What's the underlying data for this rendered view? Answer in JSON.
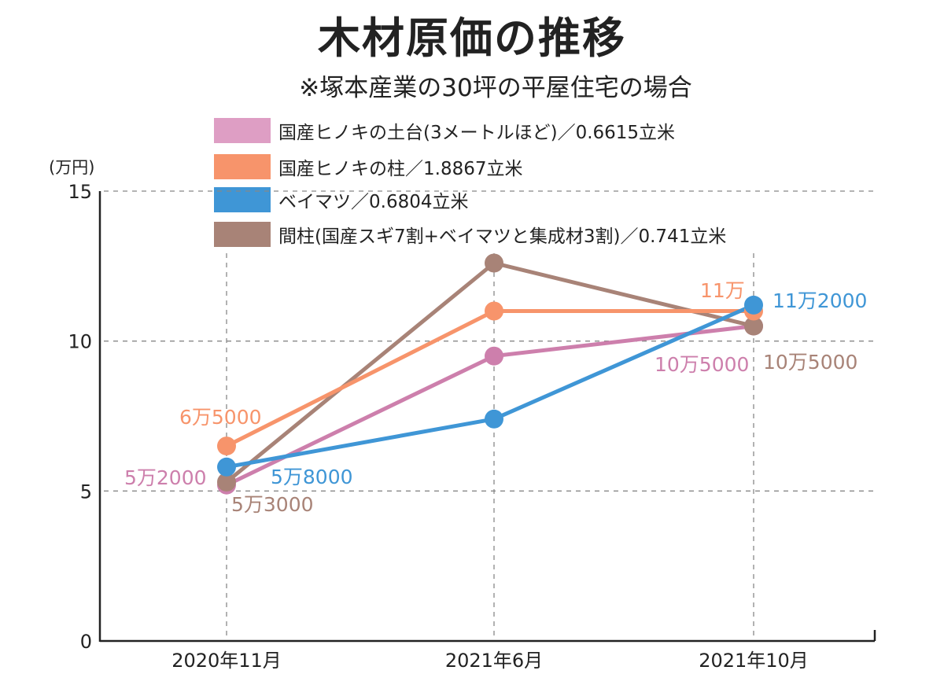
{
  "chart_data": {
    "type": "line",
    "title": "木材原価の推移",
    "subtitle": "※塚本産業の30坪の平屋住宅の場合",
    "ylabel": "(万円)",
    "ylim": [
      0,
      15
    ],
    "yticks": [
      "0",
      "5",
      "10",
      "15"
    ],
    "categories": [
      "2020年11月",
      "2021年6月",
      "2021年10月"
    ],
    "grid": true,
    "legend_position": "top",
    "series": [
      {
        "name": "国産ヒノキの土台(3メートルほど)／0.6615立米",
        "color": "#cd7fac",
        "legend_color": "#de9ec4",
        "values": [
          5.2,
          9.5,
          10.5
        ],
        "labels": [
          "5万2000",
          "",
          "10万5000"
        ]
      },
      {
        "name": "国産ヒノキの柱／1.8867立米",
        "color": "#f7946b",
        "legend_color": "#f7946b",
        "values": [
          6.5,
          11.0,
          11.0
        ],
        "labels": [
          "6万5000",
          "",
          "11万"
        ]
      },
      {
        "name": "ベイマツ／0.6804立米",
        "color": "#3f96d6",
        "legend_color": "#3f96d6",
        "values": [
          5.8,
          7.4,
          11.2
        ],
        "labels": [
          "5万8000",
          "",
          "11万2000"
        ]
      },
      {
        "name": "間柱(国産スギ7割+ベイマツと集成材3割)／0.741立米",
        "color": "#a88377",
        "legend_color": "#a88377",
        "values": [
          5.3,
          12.6,
          10.5
        ],
        "labels": [
          "5万3000",
          "",
          "10万5000"
        ]
      }
    ]
  }
}
